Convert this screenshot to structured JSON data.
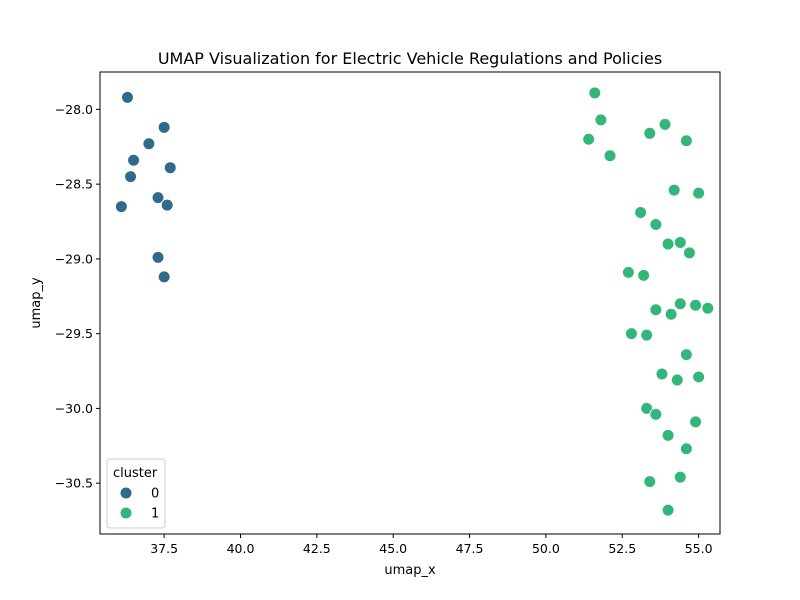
{
  "chart_data": {
    "type": "scatter",
    "title": "UMAP Visualization for Electric Vehicle Regulations and Policies",
    "xlabel": "umap_x",
    "ylabel": "umap_y",
    "xlim": [
      35.4,
      55.7
    ],
    "ylim": [
      -30.84,
      -27.75
    ],
    "xticks": [
      37.5,
      40.0,
      42.5,
      45.0,
      47.5,
      50.0,
      52.5,
      55.0
    ],
    "xtick_labels": [
      "37.5",
      "40.0",
      "42.5",
      "45.0",
      "47.5",
      "50.0",
      "52.5",
      "55.0"
    ],
    "yticks": [
      -28.0,
      -28.5,
      -29.0,
      -29.5,
      -30.0,
      -30.5
    ],
    "ytick_labels": [
      "−28.0",
      "−28.5",
      "−29.0",
      "−29.5",
      "−30.0",
      "−30.5"
    ],
    "grid": false,
    "legend": {
      "title": "cluster",
      "placement": "lower-left",
      "entries": [
        "0",
        "1"
      ]
    },
    "series": [
      {
        "name": "0",
        "color": "#2e6a8c",
        "points": [
          [
            36.3,
            -27.92
          ],
          [
            37.5,
            -28.12
          ],
          [
            37.0,
            -28.23
          ],
          [
            36.5,
            -28.34
          ],
          [
            37.7,
            -28.39
          ],
          [
            36.4,
            -28.45
          ],
          [
            37.3,
            -28.59
          ],
          [
            37.6,
            -28.64
          ],
          [
            36.1,
            -28.65
          ],
          [
            37.3,
            -28.99
          ],
          [
            37.5,
            -29.12
          ]
        ]
      },
      {
        "name": "1",
        "color": "#33b679",
        "points": [
          [
            51.6,
            -27.89
          ],
          [
            51.8,
            -28.07
          ],
          [
            53.9,
            -28.1
          ],
          [
            53.4,
            -28.16
          ],
          [
            51.4,
            -28.2
          ],
          [
            54.6,
            -28.21
          ],
          [
            52.1,
            -28.31
          ],
          [
            54.2,
            -28.54
          ],
          [
            55.0,
            -28.56
          ],
          [
            53.1,
            -28.69
          ],
          [
            53.6,
            -28.77
          ],
          [
            54.4,
            -28.89
          ],
          [
            54.0,
            -28.9
          ],
          [
            54.7,
            -28.96
          ],
          [
            52.7,
            -29.09
          ],
          [
            53.2,
            -29.11
          ],
          [
            54.4,
            -29.3
          ],
          [
            54.9,
            -29.31
          ],
          [
            55.3,
            -29.33
          ],
          [
            53.6,
            -29.34
          ],
          [
            54.1,
            -29.37
          ],
          [
            52.8,
            -29.5
          ],
          [
            53.3,
            -29.51
          ],
          [
            54.6,
            -29.64
          ],
          [
            53.8,
            -29.77
          ],
          [
            55.0,
            -29.79
          ],
          [
            54.3,
            -29.81
          ],
          [
            53.3,
            -30.0
          ],
          [
            53.6,
            -30.04
          ],
          [
            54.9,
            -30.09
          ],
          [
            54.0,
            -30.18
          ],
          [
            54.6,
            -30.27
          ],
          [
            54.4,
            -30.46
          ],
          [
            53.4,
            -30.49
          ],
          [
            54.0,
            -30.68
          ]
        ]
      }
    ]
  }
}
